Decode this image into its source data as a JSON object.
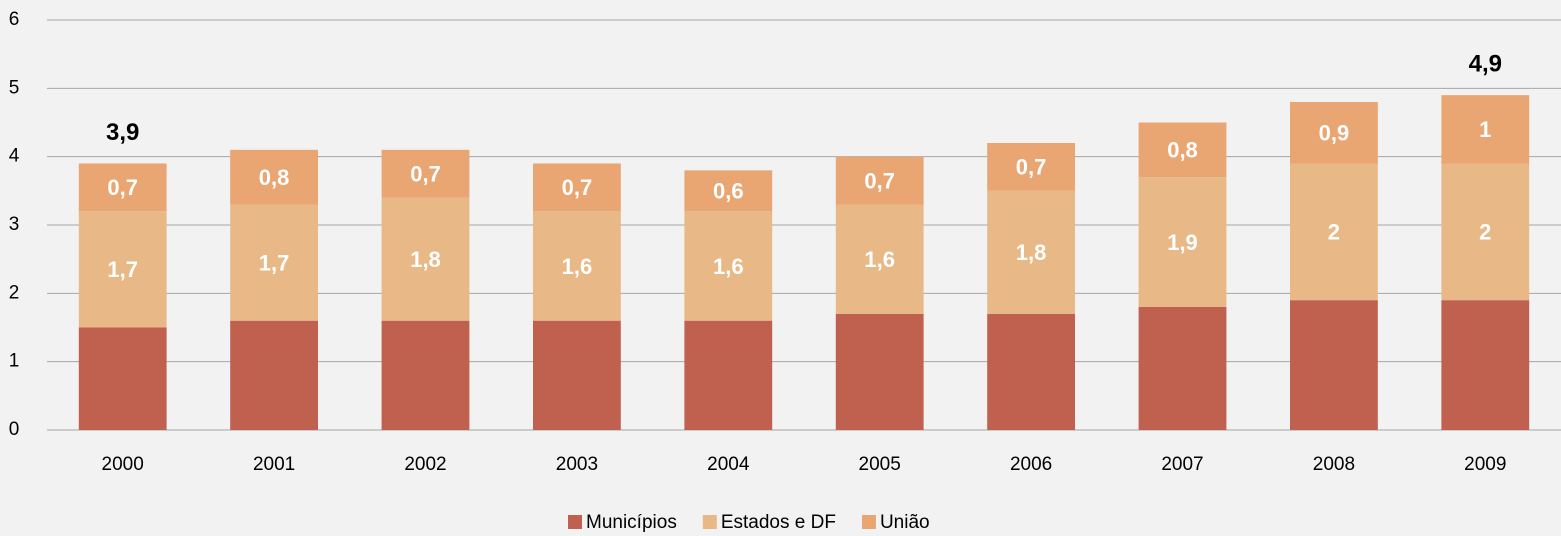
{
  "chart_data": {
    "type": "stacked_bar",
    "categories": [
      "2000",
      "2001",
      "2002",
      "2003",
      "2004",
      "2005",
      "2006",
      "2007",
      "2008",
      "2009"
    ],
    "series": [
      {
        "name": "Municípios",
        "color": "#c0614f",
        "values": [
          1.5,
          1.6,
          1.6,
          1.6,
          1.6,
          1.7,
          1.7,
          1.8,
          1.9,
          1.9
        ]
      },
      {
        "name": "Estados e DF",
        "color": "#e8b986",
        "values": [
          1.7,
          1.7,
          1.8,
          1.6,
          1.6,
          1.6,
          1.8,
          1.9,
          2,
          2
        ],
        "value_labels": [
          "1,7",
          "1,7",
          "1,8",
          "1,6",
          "1,6",
          "1,6",
          "1,8",
          "1,9",
          "2",
          "2"
        ]
      },
      {
        "name": "União",
        "color": "#e9a673",
        "values": [
          0.7,
          0.8,
          0.7,
          0.7,
          0.6,
          0.7,
          0.7,
          0.8,
          0.9,
          1
        ],
        "value_labels": [
          "0,7",
          "0,8",
          "0,7",
          "0,7",
          "0,6",
          "0,7",
          "0,7",
          "0,8",
          "0,9",
          "1"
        ]
      }
    ],
    "annotations": [
      {
        "x": "2000",
        "y": 3.9,
        "label": "3,9"
      },
      {
        "x": "2009",
        "y": 4.9,
        "label": "4,9"
      }
    ],
    "ylim": [
      0,
      6
    ],
    "yticks": [
      0,
      1,
      2,
      3,
      4,
      5,
      6
    ],
    "grid": true,
    "legend": "bottom"
  }
}
